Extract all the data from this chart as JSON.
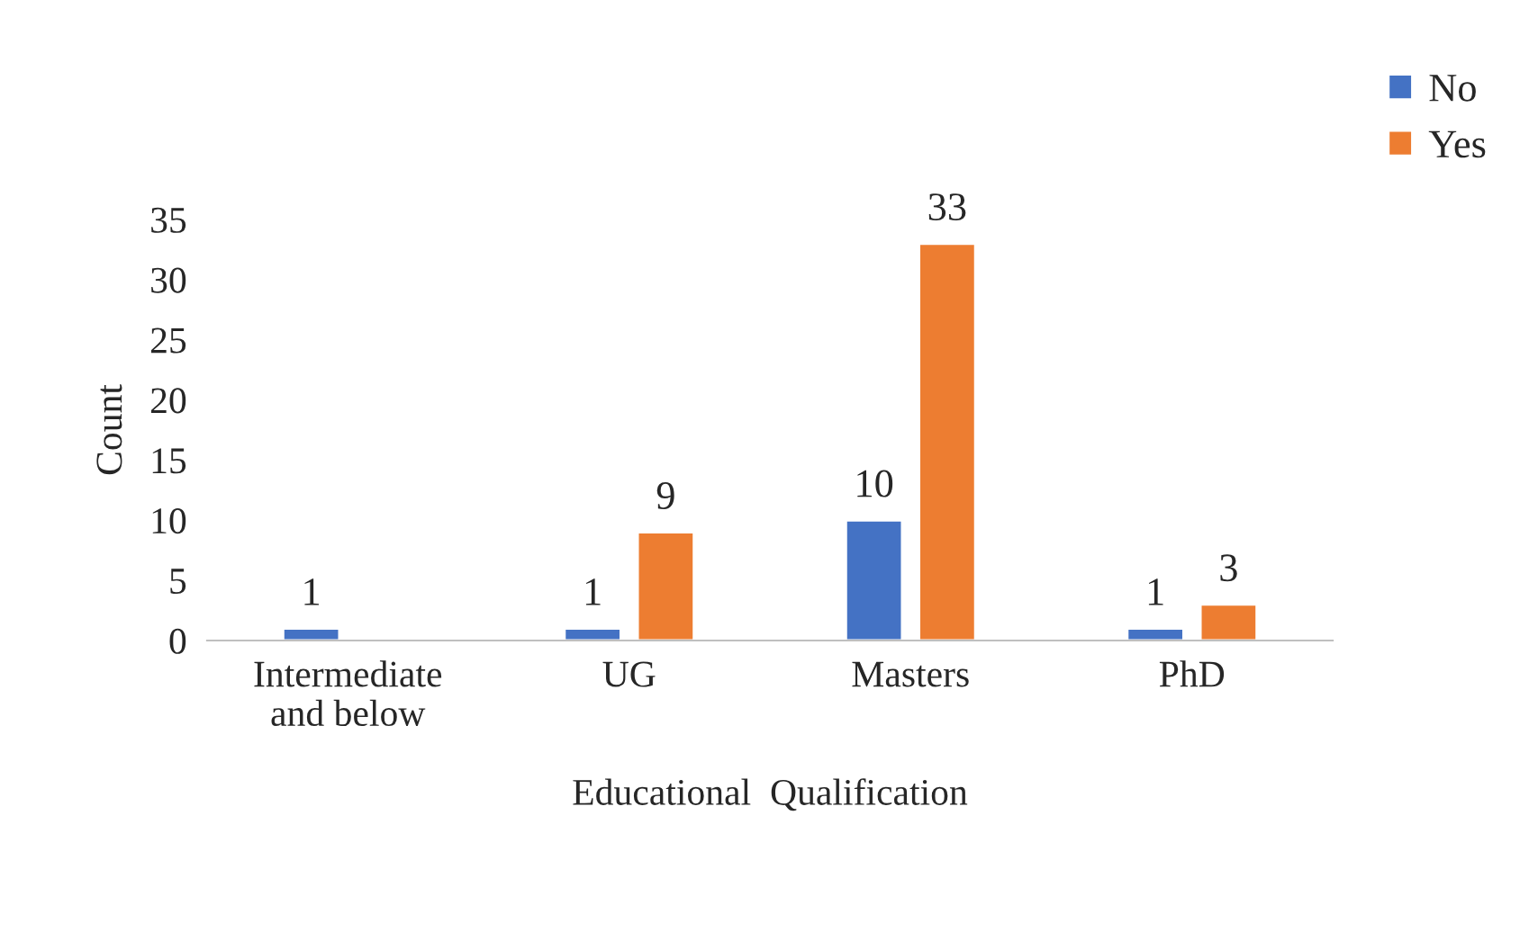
{
  "chart_data": {
    "type": "bar",
    "xlabel": "Educational  Qualification",
    "ylabel": "Count",
    "categories": [
      "Intermediate\nand below",
      "UG",
      "Masters",
      "PhD"
    ],
    "series": [
      {
        "name": "No",
        "color": "#4472c4",
        "values": [
          1,
          1,
          10,
          1
        ]
      },
      {
        "name": "Yes",
        "color": "#ed7d31",
        "values": [
          null,
          9,
          33,
          3
        ]
      }
    ],
    "ylim": [
      0,
      35
    ],
    "yticks": [
      0,
      5,
      10,
      15,
      20,
      25,
      30,
      35
    ],
    "data_labels": true,
    "legend": "top right",
    "grid": false
  }
}
